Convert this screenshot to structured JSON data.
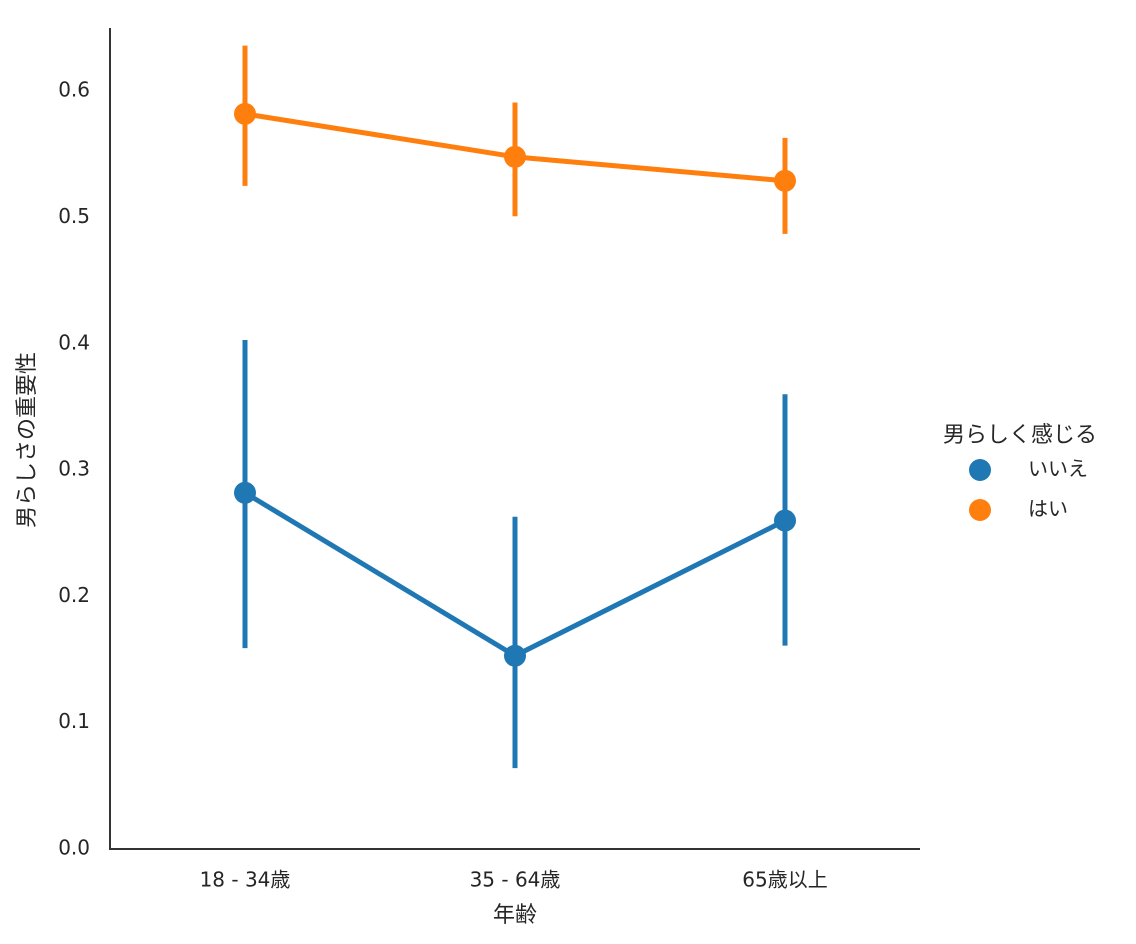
{
  "chart_data": {
    "type": "point",
    "x_label": "年齢",
    "y_label": "男らしさの重要性",
    "categories": [
      "18 - 34歳",
      "35 - 64歳",
      "65歳以上"
    ],
    "series": [
      {
        "name": "いいえ",
        "color": "#1f77b4",
        "values": [
          0.282,
          0.153,
          0.26
        ],
        "lower": [
          0.159,
          0.064,
          0.161
        ],
        "upper": [
          0.403,
          0.263,
          0.36
        ]
      },
      {
        "name": "はい",
        "color": "#ff7f0e",
        "values": [
          0.582,
          0.548,
          0.529
        ],
        "lower": [
          0.525,
          0.501,
          0.487
        ],
        "upper": [
          0.636,
          0.591,
          0.563
        ]
      }
    ],
    "ylim": [
      0,
      0.65
    ],
    "yticks": [
      {
        "value": 0,
        "label": "0.0"
      },
      0.1,
      0.2,
      0.3,
      0.4,
      0.5,
      0.6
    ],
    "grid": false,
    "legend_title": "男らしく感じる",
    "legend_position": "right"
  }
}
